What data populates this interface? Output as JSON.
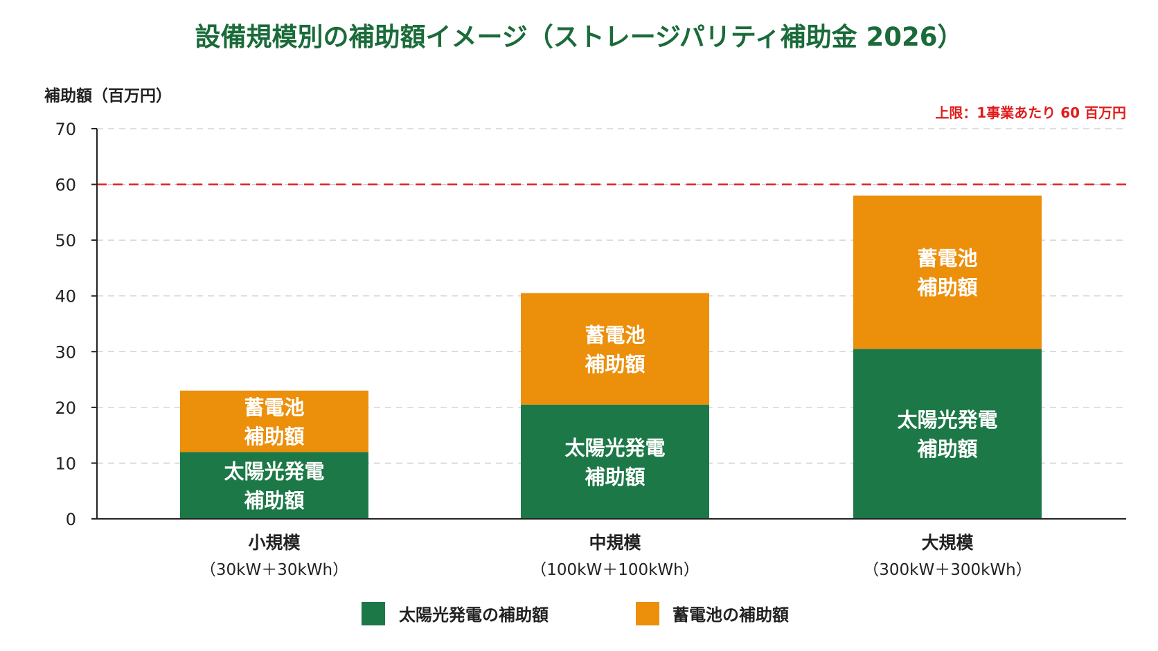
{
  "colors": {
    "title": "#1a6b39",
    "solar": "#1c7846",
    "battery": "#ec8f0b",
    "cap_line": "#e01b1b",
    "grid": "#cccccc",
    "axis": "#222222",
    "bar_text": "#ffffff"
  },
  "chart_data": {
    "type": "bar",
    "stacked": true,
    "title": "設備規模別の補助額イメージ（ストレージパリティ補助金 2026）",
    "ylabel": "補助額（百万円）",
    "ylim": [
      0,
      70
    ],
    "yticks": [
      0,
      10,
      20,
      30,
      40,
      50,
      60,
      70
    ],
    "grid": true,
    "legend_position": "bottom",
    "categories": [
      "小規模",
      "中規模",
      "大規模"
    ],
    "category_subs": [
      "（30kW＋30kWh）",
      "（100kW＋100kWh）",
      "（300kW＋300kWh）"
    ],
    "series": [
      {
        "name": "太陽光発電の補助額",
        "segment_label_lines": [
          "太陽光発電",
          "補助額"
        ],
        "color_key": "solar",
        "values": [
          12,
          20.5,
          30.5
        ]
      },
      {
        "name": "蓄電池の補助額",
        "segment_label_lines": [
          "蓄電池",
          "補助額"
        ],
        "color_key": "battery",
        "values": [
          11,
          20,
          27.5
        ]
      }
    ],
    "reference_line": {
      "value": 60,
      "label": "上限：1事業あたり 60 百万円"
    }
  }
}
